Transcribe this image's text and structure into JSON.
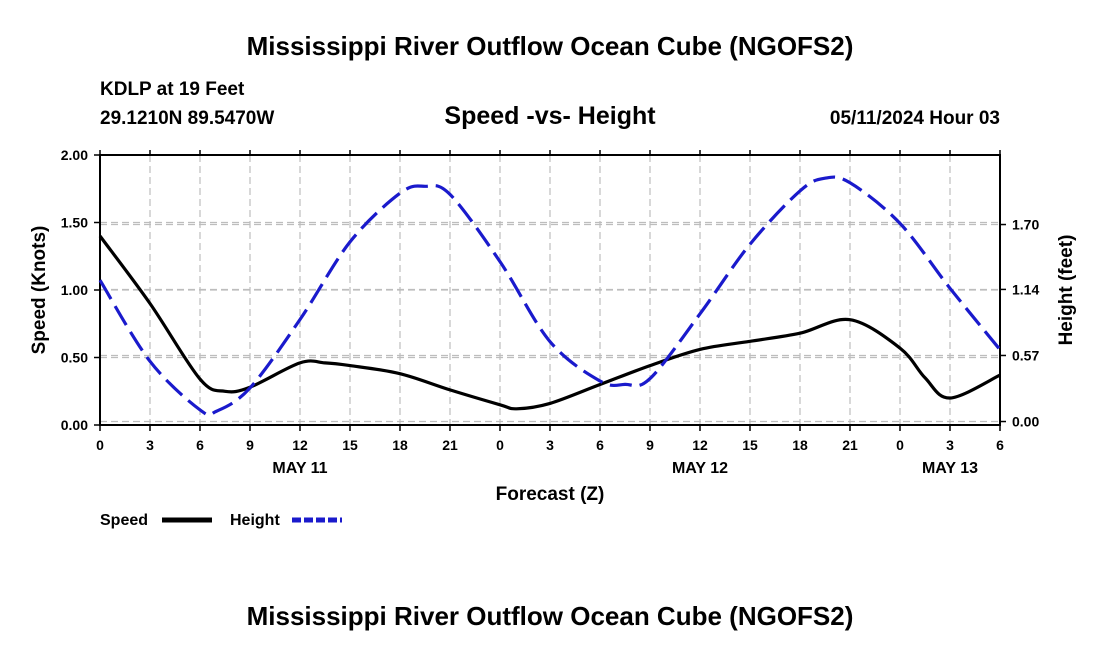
{
  "header": {
    "title": "Mississippi River Outflow Ocean Cube (NGOFS2)",
    "station": "KDLP at 19 Feet",
    "coords": "29.1210N  89.5470W",
    "datetime": "05/11/2024 Hour 03"
  },
  "footer": {
    "title": "Mississippi River Outflow Ocean Cube (NGOFS2)"
  },
  "chart_data": {
    "type": "line",
    "title": "Speed -vs- Height",
    "xlabel": "Forecast (Z)",
    "ylabel": "Speed (Knots)",
    "y2label": "Height (feet)",
    "xlim": [
      0,
      54
    ],
    "ylim": [
      0,
      2.0
    ],
    "y2lim": [
      -0.03,
      2.3
    ],
    "x_ticks": [
      0,
      3,
      6,
      9,
      12,
      15,
      18,
      21,
      24,
      27,
      30,
      33,
      36,
      39,
      42,
      45,
      48,
      51,
      54
    ],
    "x_tick_labels": [
      "0",
      "3",
      "6",
      "9",
      "12",
      "15",
      "18",
      "21",
      "0",
      "3",
      "6",
      "9",
      "12",
      "15",
      "18",
      "21",
      "0",
      "3",
      "6"
    ],
    "y_ticks": [
      "0.00",
      "0.50",
      "1.00",
      "1.50",
      "2.00"
    ],
    "y2_ticks": [
      "0.00",
      "0.57",
      "1.14",
      "1.70"
    ],
    "date_labels": [
      {
        "x": 12,
        "label": "MAY 11"
      },
      {
        "x": 36,
        "label": "MAY 12"
      },
      {
        "x": 51,
        "label": "MAY 13"
      }
    ],
    "grid": true,
    "legend_position": "bottom-left",
    "series": [
      {
        "name": "Speed",
        "axis": "left",
        "color": "#000000",
        "style": "solid",
        "x": [
          0,
          3,
          6,
          7.5,
          9,
          12,
          13.5,
          15,
          18,
          21,
          24,
          25,
          27,
          30,
          33,
          36,
          39,
          42,
          45,
          48,
          49.5,
          51,
          54
        ],
        "y": [
          1.4,
          0.9,
          0.34,
          0.25,
          0.28,
          0.46,
          0.46,
          0.44,
          0.38,
          0.26,
          0.15,
          0.12,
          0.16,
          0.3,
          0.44,
          0.56,
          0.62,
          0.68,
          0.78,
          0.57,
          0.35,
          0.2,
          0.37
        ]
      },
      {
        "name": "Height",
        "axis": "right",
        "color": "#1a1acc",
        "style": "dashed",
        "x": [
          0,
          3,
          6,
          7,
          9,
          12,
          15,
          18,
          19.5,
          21,
          24,
          27,
          30,
          31.5,
          33,
          36,
          39,
          42,
          43.5,
          45,
          48,
          51,
          54
        ],
        "y": [
          1.22,
          0.52,
          0.1,
          0.09,
          0.29,
          0.88,
          1.55,
          1.97,
          2.03,
          1.96,
          1.38,
          0.69,
          0.35,
          0.32,
          0.37,
          0.93,
          1.53,
          1.99,
          2.1,
          2.06,
          1.71,
          1.15,
          0.62
        ]
      }
    ]
  }
}
